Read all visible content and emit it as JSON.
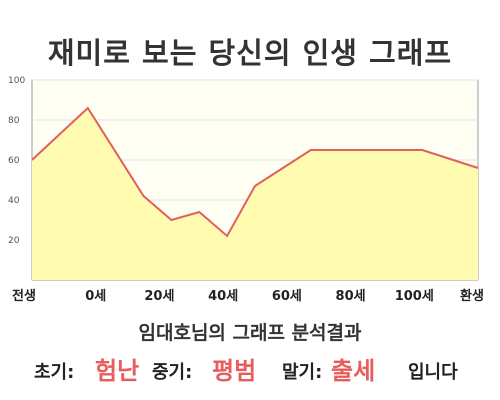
{
  "title": "재미로 보는 당신의 인생 그래프",
  "subtitle": "임대호님의 그래프 분석결과",
  "result": {
    "early_label": "초기:",
    "early_value": "험난",
    "middle_label": "중기:",
    "middle_value": "평범",
    "late_label": "말기:",
    "late_value": "출세",
    "ending": "입니다"
  },
  "colors": {
    "line": "#e06060",
    "fill": "#fffbb0",
    "plot_bg": "#fffef2",
    "highlight": "#e85c5c"
  },
  "chart_data": {
    "type": "area",
    "title": "재미로 보는 당신의 인생 그래프",
    "xlabel": "",
    "ylabel": "",
    "ylim": [
      0,
      100
    ],
    "y_ticks": [
      "20",
      "40",
      "60",
      "80",
      "100"
    ],
    "x_tick_labels": [
      "전생",
      "0세",
      "20세",
      "40세",
      "60세",
      "80세",
      "100세",
      "환생"
    ],
    "x": [
      -10,
      0,
      10,
      15,
      20,
      25,
      30,
      40,
      50,
      60,
      70
    ],
    "series": [
      {
        "values": [
          60,
          86,
          42,
          30,
          34,
          22,
          47,
          65,
          65,
          65,
          56
        ]
      }
    ],
    "grid": true
  }
}
